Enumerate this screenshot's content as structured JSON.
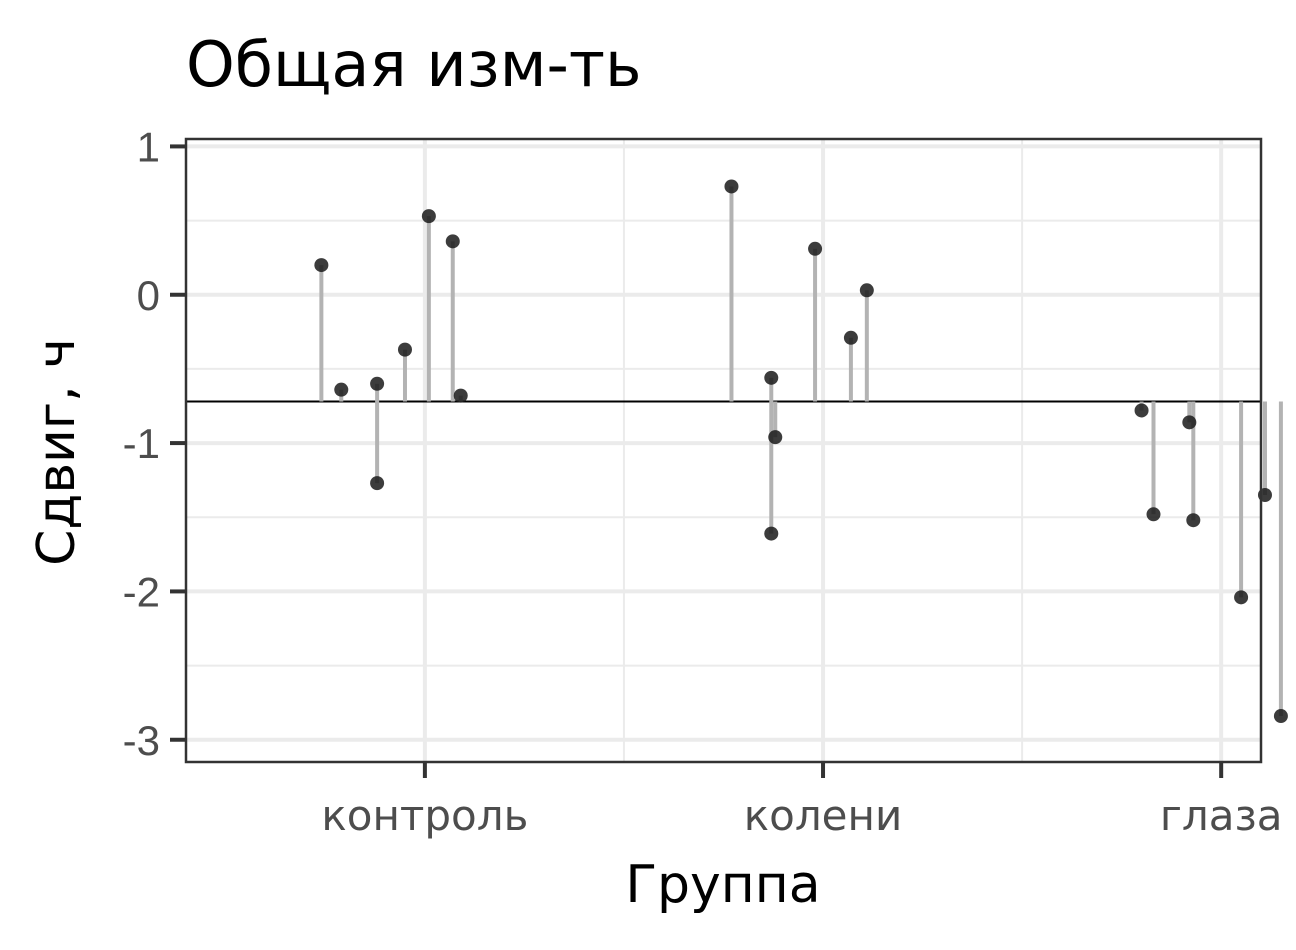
{
  "chart_data": {
    "type": "scatter",
    "title": "Общая изм-ть",
    "xlabel": "Группа",
    "ylabel": "Сдвиг, ч",
    "categories": [
      "контроль",
      "колени",
      "глаза"
    ],
    "ylim": [
      -3.15,
      1.05
    ],
    "yticks": [
      1,
      0,
      -1,
      -2,
      -3
    ],
    "ytick_labels": [
      "1",
      "0",
      "-1",
      "-2",
      "-3"
    ],
    "grid": true,
    "reference_line": -0.72,
    "points": [
      {
        "group": "контроль",
        "offset": -0.26,
        "y": 0.2
      },
      {
        "group": "контроль",
        "offset": -0.21,
        "y": -0.64
      },
      {
        "group": "контроль",
        "offset": -0.12,
        "y": -0.6
      },
      {
        "group": "контроль",
        "offset": -0.12,
        "y": -1.27
      },
      {
        "group": "контроль",
        "offset": -0.05,
        "y": -0.37
      },
      {
        "group": "контроль",
        "offset": 0.01,
        "y": 0.53
      },
      {
        "group": "контроль",
        "offset": 0.07,
        "y": 0.36
      },
      {
        "group": "контроль",
        "offset": 0.09,
        "y": -0.68
      },
      {
        "group": "колени",
        "offset": -0.23,
        "y": 0.73
      },
      {
        "group": "колени",
        "offset": -0.13,
        "y": -0.56
      },
      {
        "group": "колени",
        "offset": -0.12,
        "y": -0.96
      },
      {
        "group": "колени",
        "offset": -0.13,
        "y": -1.61
      },
      {
        "group": "колени",
        "offset": -0.02,
        "y": 0.31
      },
      {
        "group": "колени",
        "offset": 0.07,
        "y": -0.29
      },
      {
        "group": "колени",
        "offset": 0.11,
        "y": 0.03
      },
      {
        "group": "глаза",
        "offset": -0.2,
        "y": -0.78
      },
      {
        "group": "глаза",
        "offset": -0.17,
        "y": -1.48
      },
      {
        "group": "глаза",
        "offset": -0.08,
        "y": -0.86
      },
      {
        "group": "глаза",
        "offset": -0.07,
        "y": -1.52
      },
      {
        "group": "глаза",
        "offset": 0.05,
        "y": -2.04
      },
      {
        "group": "глаза",
        "offset": 0.11,
        "y": -1.35
      },
      {
        "group": "глаза",
        "offset": 0.15,
        "y": -2.84
      }
    ],
    "colors": {
      "point": "#1a1a1a",
      "segment": "#b3b3b3",
      "grid": "#ebebeb",
      "reference_line": "#000000",
      "border": "#333333"
    }
  }
}
